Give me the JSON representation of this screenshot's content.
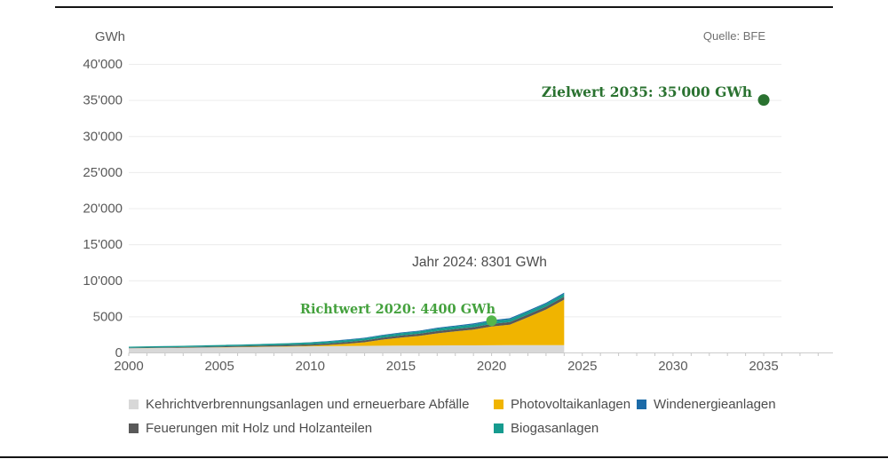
{
  "header": {
    "unit_label": "GWh",
    "source_label": "Quelle: BFE"
  },
  "annotations": {
    "current": "Jahr 2024: 8301 GWh",
    "richtwert": "Richtwert 2020: 4400 GWh",
    "zielwert": "Zielwert 2035: 35'000 GWh"
  },
  "legend": {
    "items": [
      {
        "label": "Kehrichtverbrennungsanlagen und erneuerbare Abfälle",
        "color": "#d8d8d8"
      },
      {
        "label": "Photovoltaikanlagen",
        "color": "#f0b400"
      },
      {
        "label": "Windenergieanlagen",
        "color": "#1c6ba8"
      },
      {
        "label": "Feuerungen mit Holz und Holzanteilen",
        "color": "#595959"
      },
      {
        "label": "Biogasanlagen",
        "color": "#169b8f"
      }
    ]
  },
  "chart_data": {
    "type": "area",
    "stacked": true,
    "title": "",
    "ylabel": "GWh",
    "xlim": [
      2000,
      2038.8
    ],
    "ylim": [
      0,
      40000
    ],
    "grid": "horizontal",
    "legend_position": "bottom",
    "x": [
      2000,
      2001,
      2002,
      2003,
      2004,
      2005,
      2006,
      2007,
      2008,
      2009,
      2010,
      2011,
      2012,
      2013,
      2014,
      2015,
      2016,
      2017,
      2018,
      2019,
      2020,
      2021,
      2022,
      2023,
      2024
    ],
    "series": [
      {
        "name": "Kehrichtverbrennungsanlagen und erneuerbare Abfälle",
        "color": "#d8d8d8",
        "values": [
          580,
          600,
          620,
          640,
          670,
          700,
          730,
          760,
          790,
          820,
          850,
          880,
          900,
          920,
          940,
          950,
          960,
          970,
          980,
          990,
          1000,
          1010,
          1010,
          1020,
          1020
        ]
      },
      {
        "name": "Photovoltaikanlagen",
        "color": "#f0b400",
        "values": [
          11,
          13,
          15,
          18,
          21,
          28,
          32,
          38,
          45,
          60,
          94,
          168,
          300,
          500,
          842,
          1119,
          1333,
          1683,
          1945,
          2178,
          2599,
          2842,
          3874,
          4930,
          6300
        ]
      },
      {
        "name": "Feuerungen mit Holz und Holzanteilen",
        "color": "#595959",
        "values": [
          60,
          70,
          80,
          90,
          100,
          110,
          125,
          140,
          160,
          180,
          200,
          220,
          240,
          255,
          270,
          285,
          300,
          315,
          330,
          345,
          355,
          370,
          385,
          400,
          415
        ]
      },
      {
        "name": "Biogasanlagen",
        "color": "#169b8f",
        "values": [
          150,
          158,
          165,
          172,
          180,
          188,
          196,
          205,
          215,
          225,
          235,
          250,
          265,
          280,
          295,
          305,
          320,
          335,
          350,
          365,
          372,
          378,
          382,
          386,
          390
        ]
      },
      {
        "name": "Windenergieanlagen",
        "color": "#1c6ba8",
        "values": [
          3,
          5,
          5,
          5,
          8,
          8,
          15,
          16,
          19,
          23,
          37,
          70,
          88,
          90,
          101,
          110,
          109,
          133,
          122,
          146,
          146,
          147,
          150,
          160,
          175
        ]
      }
    ],
    "series_order_note": "bottom to top",
    "total_2024": 8301,
    "y_ticks": [
      {
        "value": 0,
        "label": "0"
      },
      {
        "value": 5000,
        "label": "5000"
      },
      {
        "value": 10000,
        "label": "10'000"
      },
      {
        "value": 15000,
        "label": "15'000"
      },
      {
        "value": 20000,
        "label": "20'000"
      },
      {
        "value": 25000,
        "label": "25'000"
      },
      {
        "value": 30000,
        "label": "30'000"
      },
      {
        "value": 35000,
        "label": "35'000"
      },
      {
        "value": 40000,
        "label": "40'000"
      }
    ],
    "x_ticks": [
      {
        "value": 2000,
        "label": "2000"
      },
      {
        "value": 2005,
        "label": "2005"
      },
      {
        "value": 2010,
        "label": "2010"
      },
      {
        "value": 2015,
        "label": "2015"
      },
      {
        "value": 2020,
        "label": "2020"
      },
      {
        "value": 2025,
        "label": "2025"
      },
      {
        "value": 2030,
        "label": "2030"
      },
      {
        "value": 2035,
        "label": "2035"
      }
    ],
    "markers": [
      {
        "label": "Richtwert 2020: 4400 GWh",
        "x": 2020,
        "y": 4400,
        "r": 6,
        "color": "#55b64c"
      },
      {
        "label": "Zielwert 2035: 35'000 GWh",
        "x": 2035,
        "y": 35000,
        "r": 6.5,
        "color": "#2a7230"
      }
    ]
  }
}
